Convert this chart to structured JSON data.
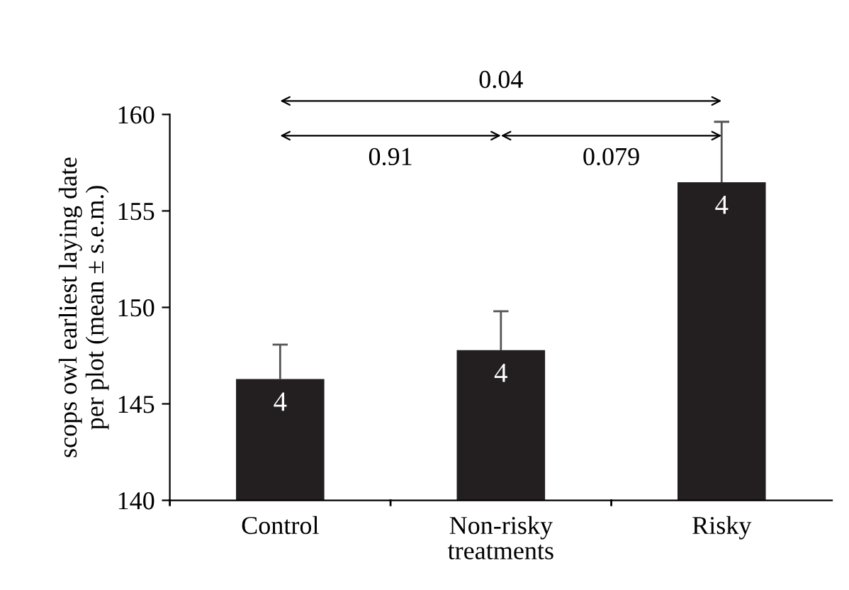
{
  "chart_data": {
    "type": "bar",
    "categories": [
      "Control",
      "Non-risky",
      "Risky"
    ],
    "values": [
      146.29,
      147.78,
      156.49
    ],
    "errors": [
      [
        146.29,
        148.07
      ],
      [
        147.78,
        149.8
      ],
      [
        156.49,
        159.62
      ]
    ],
    "color": "#231f20",
    "xlabel": "treatments",
    "ylabel": "scops owl earliest laying date\nper plot (mean ± s.e.m.)",
    "ylim": [
      140,
      160
    ],
    "yticks": [
      140,
      145,
      150,
      155,
      160
    ],
    "annotations": [
      {
        "text": "4",
        "x": "Control",
        "y": 146.29
      },
      {
        "text": "4",
        "x": "Non-risky",
        "y": 147.78
      },
      {
        "text": "4",
        "x": "Risky",
        "y": 156.49
      },
      "0.91",
      "0.079",
      "0.04"
    ],
    "grid": false,
    "legend": false
  }
}
